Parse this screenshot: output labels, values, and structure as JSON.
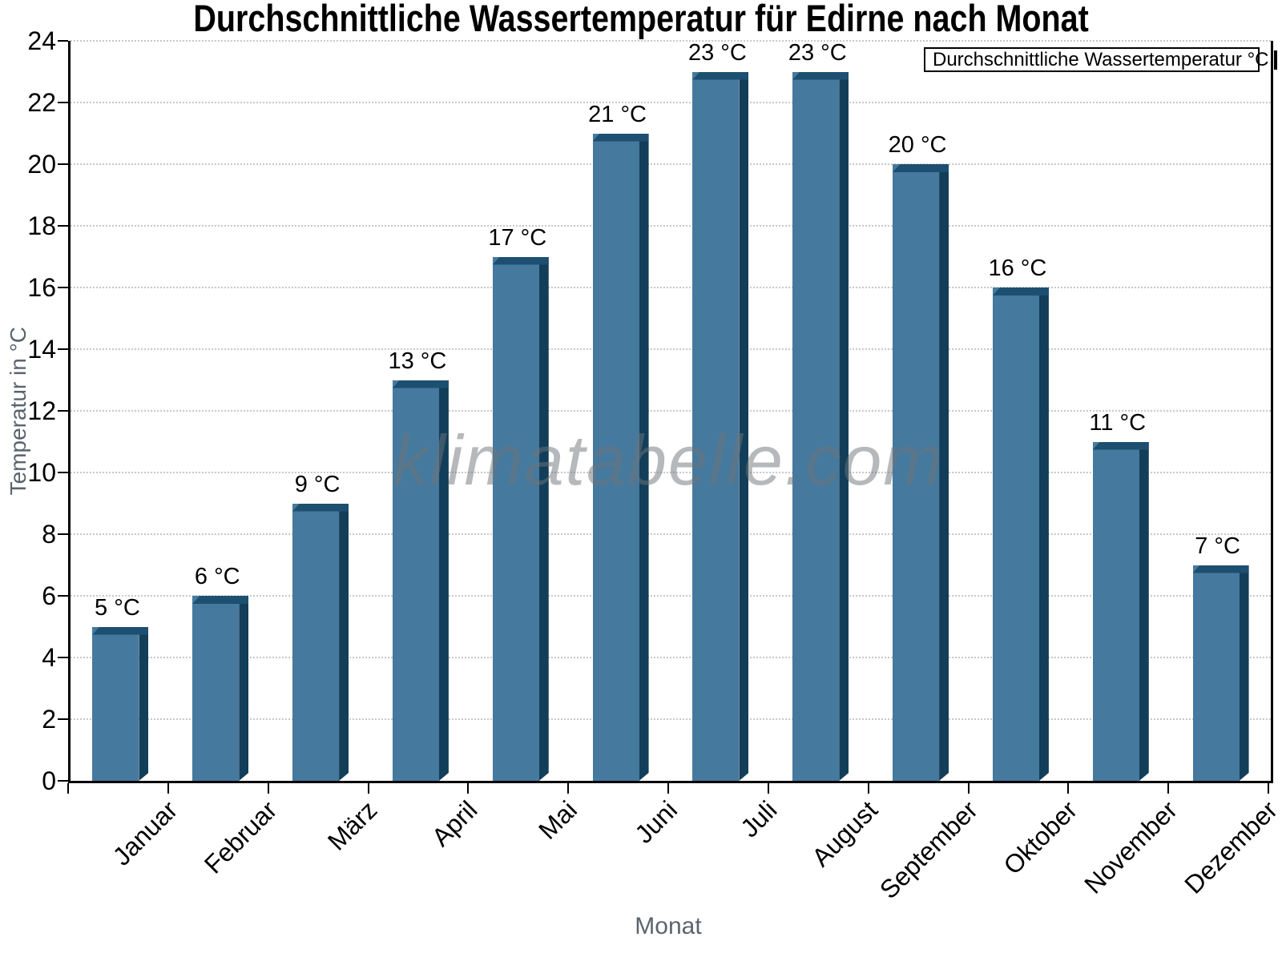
{
  "chart_data": {
    "type": "bar",
    "title": "Durchschnittliche Wassertemperatur für Edirne nach Monat",
    "xlabel": "Monat",
    "ylabel": "Temperatur in °C",
    "categories": [
      "Januar",
      "Februar",
      "März",
      "April",
      "Mai",
      "Juni",
      "Juli",
      "August",
      "September",
      "Oktober",
      "November",
      "Dezember"
    ],
    "values": [
      5,
      6,
      9,
      13,
      17,
      21,
      23,
      23,
      20,
      16,
      11,
      7
    ],
    "bar_labels": [
      "5 °C",
      "6 °C",
      "9 °C",
      "13 °C",
      "17 °C",
      "21 °C",
      "23 °C",
      "23 °C",
      "20 °C",
      "16 °C",
      "11 °C",
      "7 °C"
    ],
    "ylim": [
      0,
      24
    ],
    "ytick_step": 2,
    "yticks": [
      0,
      2,
      4,
      6,
      8,
      10,
      12,
      14,
      16,
      18,
      20,
      22,
      24
    ],
    "grid": "horizontal-dotted",
    "legend": {
      "label": "Durchschnittliche Wassertemperatur °C",
      "position": "top-right"
    },
    "watermark": "klimatabelle.com",
    "colors": {
      "bar_face": "#46799E",
      "bar_side": "#123E5A",
      "bar_top": "#1D4F70",
      "legend_marker": "#4779A2",
      "grid": "#C8C8C8",
      "axis": "#000000",
      "axis_title": "#5A646E",
      "watermark": "#8F9498"
    }
  }
}
